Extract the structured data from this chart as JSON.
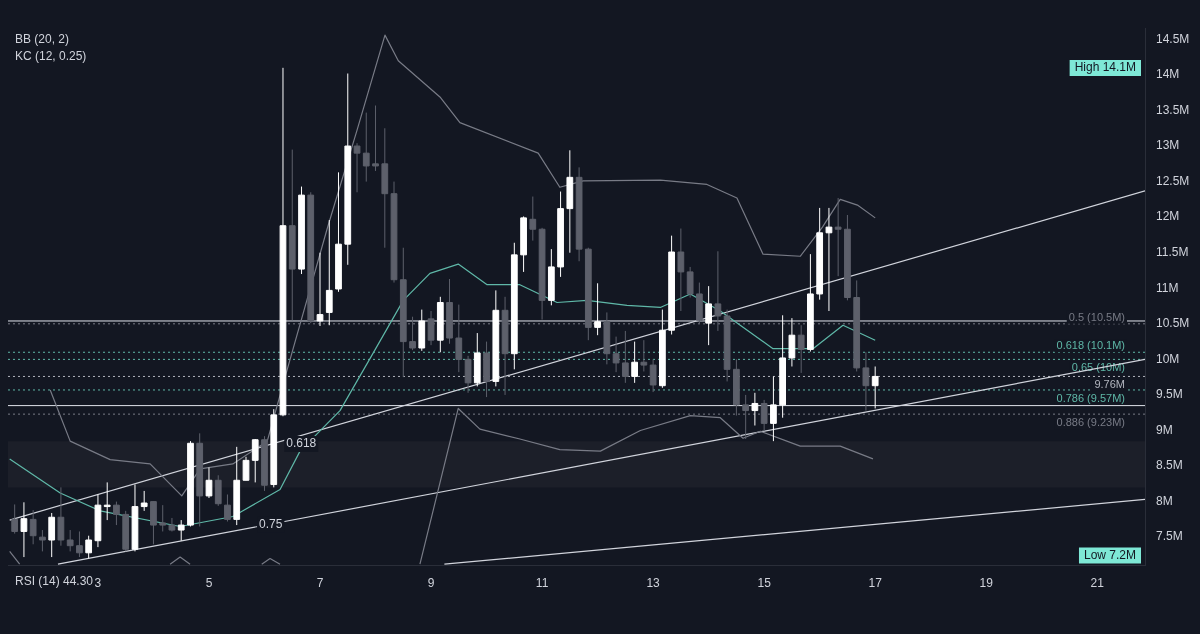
{
  "chart_data": {
    "type": "candlestick",
    "x": [
      1.5,
      1.667,
      1.833,
      2,
      2.167,
      2.333,
      2.5,
      2.667,
      2.833,
      3,
      3.167,
      3.333,
      3.5,
      3.667,
      3.833,
      4,
      4.167,
      4.333,
      4.5,
      4.667,
      4.833,
      5,
      5.167,
      5.333,
      5.5,
      5.667,
      5.833,
      6,
      6.167,
      6.333,
      6.5,
      6.667,
      6.833,
      7,
      7.167,
      7.333,
      7.5,
      7.667,
      7.833,
      8,
      8.167,
      8.333,
      8.5,
      8.667,
      8.833,
      9,
      9.167,
      9.333,
      9.5,
      9.667,
      9.833,
      10,
      10.167,
      10.333,
      10.5,
      10.667,
      10.833,
      11,
      11.167,
      11.333,
      11.5,
      11.667,
      11.833,
      12,
      12.167,
      12.333,
      12.5,
      12.667,
      12.833,
      13,
      13.167,
      13.333,
      13.5,
      13.667,
      13.833,
      14,
      14.167,
      14.333,
      14.5,
      14.667,
      14.833,
      15,
      15.167,
      15.333,
      15.5,
      15.667,
      15.833,
      16,
      16.167,
      16.333,
      16.5,
      16.667,
      16.833,
      17
    ],
    "ohlc": [
      [
        7.75,
        7.96,
        7.55,
        7.58
      ],
      [
        7.58,
        7.99,
        7.22,
        7.76
      ],
      [
        7.75,
        7.88,
        7.4,
        7.52
      ],
      [
        7.5,
        7.6,
        7.3,
        7.46
      ],
      [
        7.46,
        7.84,
        7.22,
        7.78
      ],
      [
        7.78,
        8.2,
        7.38,
        7.46
      ],
      [
        7.46,
        7.6,
        7.3,
        7.38
      ],
      [
        7.38,
        7.58,
        7.22,
        7.28
      ],
      [
        7.28,
        7.52,
        7.2,
        7.46
      ],
      [
        7.45,
        8.1,
        7.36,
        7.95
      ],
      [
        7.93,
        8.27,
        7.74,
        7.95
      ],
      [
        7.95,
        8.0,
        7.67,
        7.82
      ],
      [
        7.82,
        7.87,
        7.3,
        7.33
      ],
      [
        7.33,
        8.24,
        7.3,
        7.93
      ],
      [
        7.93,
        8.15,
        7.87,
        7.98
      ],
      [
        8.0,
        8.0,
        7.4,
        7.67
      ],
      [
        7.7,
        7.95,
        7.58,
        7.67
      ],
      [
        7.67,
        7.77,
        7.58,
        7.6
      ],
      [
        7.6,
        7.74,
        7.45,
        7.67
      ],
      [
        7.67,
        8.85,
        7.65,
        8.82
      ],
      [
        8.82,
        8.96,
        7.65,
        8.08
      ],
      [
        8.08,
        8.48,
        8.05,
        8.3
      ],
      [
        8.3,
        8.37,
        7.94,
        7.97
      ],
      [
        7.95,
        8.1,
        7.72,
        7.75
      ],
      [
        7.75,
        8.77,
        7.67,
        8.3
      ],
      [
        8.3,
        8.63,
        8.3,
        8.58
      ],
      [
        8.58,
        8.88,
        8.27,
        8.87
      ],
      [
        8.87,
        8.92,
        8.15,
        8.23
      ],
      [
        8.24,
        9.3,
        8.2,
        9.22
      ],
      [
        9.22,
        14.1,
        9.2,
        11.88
      ],
      [
        11.88,
        12.95,
        10.55,
        11.27
      ],
      [
        11.27,
        12.43,
        11.2,
        12.31
      ],
      [
        12.31,
        12.35,
        10.51,
        10.54
      ],
      [
        10.54,
        11.5,
        10.47,
        10.63
      ],
      [
        10.66,
        11.96,
        10.48,
        10.97
      ],
      [
        10.99,
        12.63,
        10.95,
        11.62
      ],
      [
        11.62,
        14.02,
        11.33,
        13.0
      ],
      [
        13.0,
        13.04,
        12.35,
        12.9
      ],
      [
        12.9,
        13.47,
        12.5,
        12.72
      ],
      [
        12.75,
        13.57,
        12.65,
        12.72
      ],
      [
        12.75,
        13.25,
        11.57,
        12.33
      ],
      [
        12.33,
        12.5,
        11.08,
        11.12
      ],
      [
        11.12,
        11.57,
        9.75,
        10.25
      ],
      [
        10.25,
        10.6,
        10.13,
        10.16
      ],
      [
        10.16,
        10.7,
        10.12,
        10.54
      ],
      [
        10.57,
        10.68,
        10.2,
        10.27
      ],
      [
        10.27,
        10.88,
        10.1,
        10.8
      ],
      [
        10.8,
        11.13,
        10.22,
        10.3
      ],
      [
        10.3,
        10.77,
        9.82,
        10.0
      ],
      [
        10.0,
        10.05,
        9.53,
        9.67
      ],
      [
        9.67,
        10.37,
        9.62,
        10.09
      ],
      [
        10.09,
        10.25,
        9.47,
        9.69
      ],
      [
        9.69,
        10.97,
        9.62,
        10.69
      ],
      [
        10.69,
        10.88,
        9.5,
        10.08
      ],
      [
        10.08,
        11.64,
        9.86,
        11.47
      ],
      [
        11.47,
        12.01,
        11.23,
        11.99
      ],
      [
        11.97,
        12.29,
        11.67,
        11.83
      ],
      [
        11.83,
        11.85,
        10.56,
        10.83
      ],
      [
        10.83,
        11.55,
        10.76,
        11.3
      ],
      [
        11.3,
        12.36,
        11.16,
        12.12
      ],
      [
        12.12,
        12.94,
        11.5,
        12.56
      ],
      [
        12.56,
        12.7,
        11.38,
        11.55
      ],
      [
        11.55,
        11.57,
        10.27,
        10.45
      ],
      [
        10.45,
        11.07,
        10.34,
        10.53
      ],
      [
        10.53,
        10.66,
        9.93,
        10.08
      ],
      [
        10.08,
        10.32,
        9.82,
        9.95
      ],
      [
        9.95,
        10.4,
        9.67,
        9.76
      ],
      [
        9.76,
        10.25,
        9.67,
        9.96
      ],
      [
        9.96,
        10.27,
        9.83,
        9.92
      ],
      [
        9.92,
        10.0,
        9.54,
        9.64
      ],
      [
        9.63,
        10.7,
        9.6,
        10.41
      ],
      [
        10.41,
        11.74,
        10.35,
        11.51
      ],
      [
        11.51,
        11.84,
        10.68,
        11.23
      ],
      [
        11.23,
        11.3,
        10.87,
        10.92
      ],
      [
        10.92,
        11.08,
        10.5,
        10.55
      ],
      [
        10.51,
        11.03,
        10.2,
        10.78
      ],
      [
        10.78,
        11.52,
        10.4,
        10.61
      ],
      [
        10.61,
        10.7,
        9.69,
        9.86
      ],
      [
        9.86,
        10.0,
        9.21,
        9.36
      ],
      [
        9.36,
        9.5,
        8.88,
        9.28
      ],
      [
        9.28,
        9.53,
        9.07,
        9.38
      ],
      [
        9.38,
        9.43,
        8.99,
        9.1
      ],
      [
        9.1,
        9.76,
        8.85,
        9.36
      ],
      [
        9.36,
        10.62,
        9.18,
        10.02
      ],
      [
        10.02,
        10.58,
        9.9,
        10.34
      ],
      [
        10.34,
        10.48,
        9.81,
        10.14
      ],
      [
        10.14,
        11.48,
        10.11,
        10.92
      ],
      [
        10.92,
        12.13,
        10.84,
        11.78
      ],
      [
        11.78,
        12.13,
        10.68,
        11.86
      ],
      [
        11.86,
        12.27,
        11.17,
        11.83
      ],
      [
        11.83,
        12.03,
        10.83,
        10.87
      ],
      [
        10.87,
        11.11,
        9.83,
        9.88
      ],
      [
        9.88,
        10.1,
        9.28,
        9.63
      ],
      [
        9.63,
        9.9,
        9.31,
        9.76
      ]
    ],
    "colors": [
      "#5d606b",
      "#ffffff",
      "#5d606b",
      "#5d606b",
      "#ffffff",
      "#5d606b",
      "#5d606b",
      "#5d606b",
      "#ffffff",
      "#ffffff",
      "#ffffff",
      "#5d606b",
      "#5d606b",
      "#ffffff",
      "#ffffff",
      "#5d606b",
      "#5d606b",
      "#5d606b",
      "#ffffff",
      "#ffffff",
      "#5d606b",
      "#ffffff",
      "#5d606b",
      "#5d606b",
      "#ffffff",
      "#ffffff",
      "#ffffff",
      "#5d606b",
      "#ffffff",
      "#ffffff",
      "#5d606b",
      "#ffffff",
      "#5d606b",
      "#ffffff",
      "#ffffff",
      "#ffffff",
      "#ffffff",
      "#5d606b",
      "#5d606b",
      "#5d606b",
      "#5d606b",
      "#5d606b",
      "#5d606b",
      "#5d606b",
      "#ffffff",
      "#5d606b",
      "#ffffff",
      "#5d606b",
      "#5d606b",
      "#5d606b",
      "#ffffff",
      "#5d606b",
      "#ffffff",
      "#5d606b",
      "#ffffff",
      "#ffffff",
      "#5d606b",
      "#5d606b",
      "#ffffff",
      "#ffffff",
      "#ffffff",
      "#5d606b",
      "#5d606b",
      "#ffffff",
      "#5d606b",
      "#5d606b",
      "#5d606b",
      "#ffffff",
      "#5d606b",
      "#5d606b",
      "#ffffff",
      "#ffffff",
      "#5d606b",
      "#5d606b",
      "#5d606b",
      "#ffffff",
      "#5d606b",
      "#5d606b",
      "#5d606b",
      "#5d606b",
      "#ffffff",
      "#5d606b",
      "#ffffff",
      "#ffffff",
      "#ffffff",
      "#5d606b",
      "#ffffff",
      "#ffffff",
      "#ffffff",
      "#5d606b",
      "#5d606b",
      "#5d606b",
      "#5d606b",
      "#ffffff"
    ],
    "series": [
      {
        "type": "line",
        "color": "#5fb8a8",
        "x": [
          1.41,
          2.32,
          3.04,
          4.48,
          5.43,
          6.28,
          6.64,
          7.36,
          7.9,
          8.5,
          8.98,
          9.49,
          10.01,
          10.6,
          11.27,
          11.81,
          12.53,
          13.13,
          13.67,
          14.21,
          15.16,
          15.88,
          16.42,
          17.0
        ],
        "values": [
          8.6,
          8.12,
          7.87,
          7.65,
          7.79,
          8.17,
          8.71,
          9.28,
          10.01,
          10.83,
          11.21,
          11.34,
          11.05,
          11.05,
          10.8,
          10.83,
          10.76,
          10.73,
          10.92,
          10.68,
          10.15,
          10.15,
          10.48,
          10.27
        ]
      },
      {
        "type": "line",
        "color": "#787b86",
        "x": [
          2.14,
          2.5,
          3.22,
          3.94,
          4.51,
          4.84,
          5.43,
          6.05,
          6.41,
          7.13,
          7.67,
          8.17,
          8.41,
          9.16,
          9.52,
          10.93,
          11.32,
          11.74,
          13.13,
          13.97,
          14.51,
          14.98,
          15.65,
          16.05,
          16.37,
          16.68,
          17.0
        ],
        "values": [
          9.57,
          8.85,
          8.59,
          8.53,
          8.08,
          8.46,
          8.53,
          8.85,
          9.86,
          11.84,
          13.23,
          14.56,
          14.2,
          13.69,
          13.33,
          12.9,
          12.42,
          12.51,
          12.52,
          12.46,
          12.27,
          11.48,
          11.45,
          11.86,
          12.25,
          12.17,
          11.99
        ]
      },
      {
        "type": "line",
        "color": "#787b86",
        "x": [
          1.41,
          1.59,
          1.7,
          4.3,
          4.48,
          4.66,
          4.8,
          5.95,
          6.1,
          6.28,
          6.4,
          8.8,
          9.49,
          9.88,
          10.6,
          11.32,
          12.05,
          12.77,
          13.67,
          14.21,
          14.62,
          14.93,
          15.65,
          16.37,
          16.96
        ],
        "values": [
          7.3,
          7.12,
          null,
          7.12,
          7.22,
          7.12,
          null,
          7.12,
          7.2,
          7.12,
          null,
          7.12,
          9.31,
          9.02,
          8.88,
          8.73,
          8.71,
          9.0,
          9.21,
          9.18,
          8.89,
          8.99,
          8.78,
          8.78,
          8.6
        ]
      },
      {
        "type": "line",
        "color": "#d1d4dc",
        "x": [
          1.41,
          21.86
        ],
        "values": [
          7.74,
          12.37
        ]
      },
      {
        "type": "line",
        "color": "#d1d4dc",
        "x": [
          2.28,
          21.86
        ],
        "values": [
          7.12,
          10.0
        ]
      },
      {
        "type": "line",
        "color": "#d1d4dc",
        "x": [
          9.24,
          21.86
        ],
        "values": [
          7.12,
          8.03
        ]
      }
    ],
    "ref_lines": [
      {
        "axis": "y",
        "value": 10.54,
        "color": "#e0e3eb",
        "line_style": "solid"
      },
      {
        "axis": "y",
        "value": 9.35,
        "color": "#e0e3eb",
        "line_style": "solid"
      },
      {
        "axis": "y",
        "value": 10.5,
        "label": "0.5 (10.5M)",
        "color": "#787b86",
        "line_style": "dotted"
      },
      {
        "axis": "y",
        "value": 10.1,
        "label": "0.618 (10.1M)",
        "color": "#5fb8a8",
        "line_style": "dotted"
      },
      {
        "axis": "y",
        "value": 10,
        "label": "0.65 (10M)",
        "color": "#5fb8a8",
        "line_style": "dotted"
      },
      {
        "axis": "y",
        "value": 9.76,
        "label": "9.76M",
        "color": "#b2b5be",
        "line_style": "dotted"
      },
      {
        "axis": "y",
        "value": 9.57,
        "label": "0.786 (9.57M)",
        "color": "#5fb8a8",
        "line_style": "dotted"
      },
      {
        "axis": "y",
        "value": 9.23,
        "label": "0.886 (9.23M)",
        "color": "#787b86",
        "line_style": "dotted"
      }
    ],
    "bands": [
      {
        "axis": "y",
        "from": 8.2,
        "to": 8.85,
        "color": "#1c1f29"
      }
    ],
    "annotations": [
      "BB (20, 2)",
      "KC (12, 0.25)",
      "High 14.1M",
      "Low 7.2M",
      {
        "text": "0.618",
        "x": 6.32,
        "y": 8.81
      },
      {
        "text": "0.75",
        "x": 5.83,
        "y": 7.68
      },
      "RSI (14) 44.30"
    ],
    "xlim": [
      1.38,
      21.86
    ],
    "xticks": [
      3,
      5,
      7,
      9,
      11,
      13,
      15,
      17,
      19,
      21
    ],
    "ylim": [
      7.1,
      14.66
    ],
    "yticks": [
      {
        "value": 7.5,
        "label": "7.5M"
      },
      {
        "value": 8,
        "label": "8M"
      },
      {
        "value": 8.5,
        "label": "8.5M"
      },
      {
        "value": 9,
        "label": "9M"
      },
      {
        "value": 9.5,
        "label": "9.5M"
      },
      {
        "value": 10,
        "label": "10M"
      },
      {
        "value": 10.5,
        "label": "10.5M"
      },
      {
        "value": 11,
        "label": "11M"
      },
      {
        "value": 11.5,
        "label": "11.5M"
      },
      {
        "value": 12,
        "label": "12M"
      },
      {
        "value": 12.5,
        "label": "12.5M"
      },
      {
        "value": 13,
        "label": "13M"
      },
      {
        "value": 13.5,
        "label": "13.5M"
      },
      {
        "value": 14,
        "label": "14M"
      },
      {
        "value": 14.5,
        "label": "14.5M"
      }
    ]
  }
}
